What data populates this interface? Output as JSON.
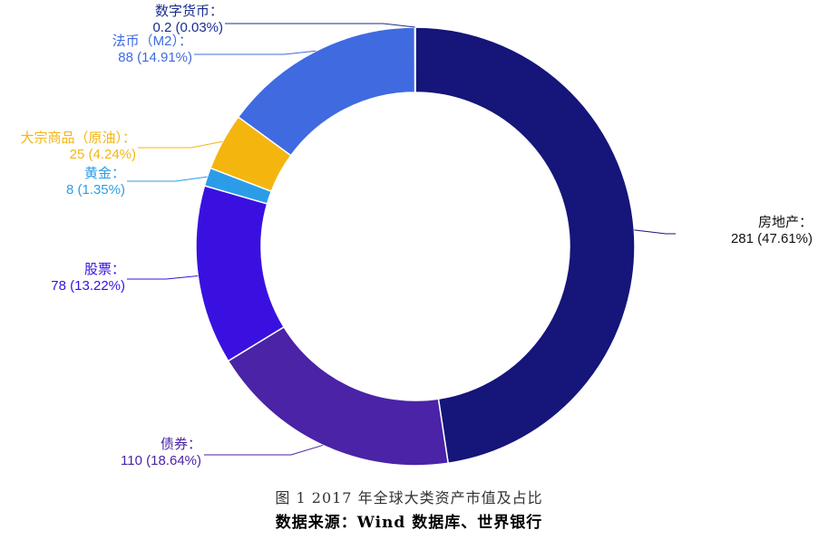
{
  "chart_data": {
    "type": "pie",
    "donut": true,
    "start_angle_deg": 0,
    "direction": "clockwise",
    "slices": [
      {
        "label": "房地产：",
        "value": 281,
        "percent": "47.61%",
        "value_text": "281 (47.61%)",
        "color": "#15157a",
        "label_side": "right"
      },
      {
        "label": "债券：",
        "value": 110,
        "percent": "18.64%",
        "value_text": "110 (18.64%)",
        "color": "#4a23a6",
        "label_side": "left"
      },
      {
        "label": "股票：",
        "value": 78,
        "percent": "13.22%",
        "value_text": "78 (13.22%)",
        "color": "#3a10e0",
        "label_side": "left"
      },
      {
        "label": "黄金：",
        "value": 8,
        "percent": "1.35%",
        "value_text": "8 (1.35%)",
        "color": "#2b9de8",
        "label_side": "left"
      },
      {
        "label": "大宗商品（原油）：",
        "value": 25,
        "percent": "4.24%",
        "value_text": "25 (4.24%)",
        "color": "#f5b50f",
        "label_side": "left"
      },
      {
        "label": "法币（M2）：",
        "value": 88,
        "percent": "14.91%",
        "value_text": "88 (14.91%)",
        "color": "#3f6ae0",
        "label_side": "left"
      },
      {
        "label": "数字货币：",
        "value": 0.2,
        "percent": "0.03%",
        "value_text": "0.2 (0.03%)",
        "color": "#1a2d8f",
        "label_side": "left"
      }
    ]
  },
  "caption": {
    "title": "图 1 2017 年全球大类资产市值及占比",
    "source": "数据来源：Wind 数据库、世界银行"
  }
}
